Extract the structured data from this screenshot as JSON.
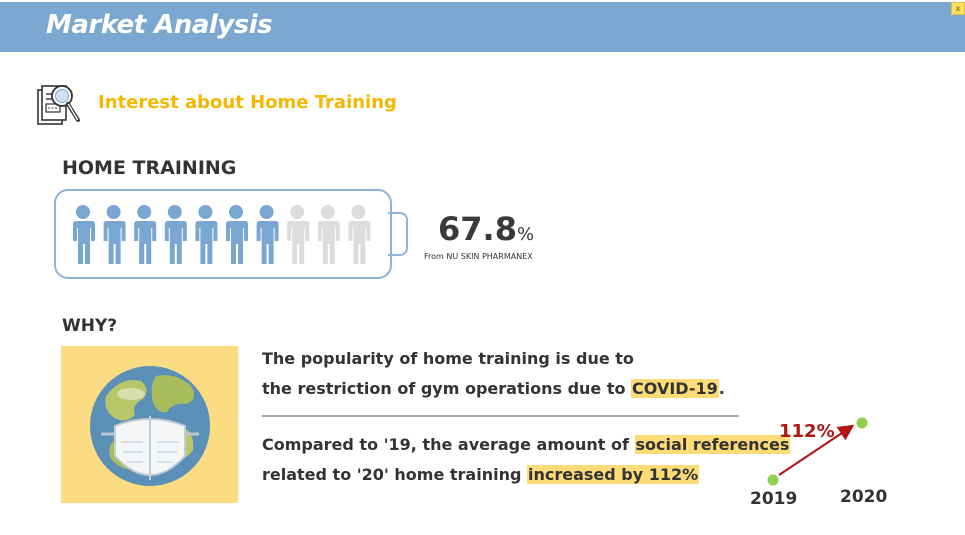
{
  "header": {
    "title": "Market Analysis",
    "close_label": "x"
  },
  "section": {
    "title": "Interest about Home Training",
    "icon": "document-search-icon"
  },
  "home_training": {
    "heading": "HOME TRAINING",
    "filled_people": 7,
    "total_people": 10,
    "percent_value": "67.8",
    "percent_sign": "%",
    "source": "From NU SKIN PHARMANEX",
    "colors": {
      "filled": "#7aa6d2",
      "empty": "#dcdcdc",
      "outline": "#8fb3d6"
    }
  },
  "why": {
    "heading": "WHY?",
    "image_icon": "globe-with-mask-icon",
    "line1": "The popularity of home training is due to",
    "line2_prefix": "the restriction of gym operations due to ",
    "line2_highlight": "COVID-19",
    "line2_suffix": ".",
    "line3_prefix": "Compared to '19, the average amount of ",
    "line3_highlight": "social references",
    "line4_prefix": "related to '20' home training ",
    "line4_highlight": "increased by 112%"
  },
  "growth": {
    "percent": "112%",
    "year_start": "2019",
    "year_end": "2020",
    "colors": {
      "dot": "#92d050",
      "arrow": "#b01414"
    }
  }
}
